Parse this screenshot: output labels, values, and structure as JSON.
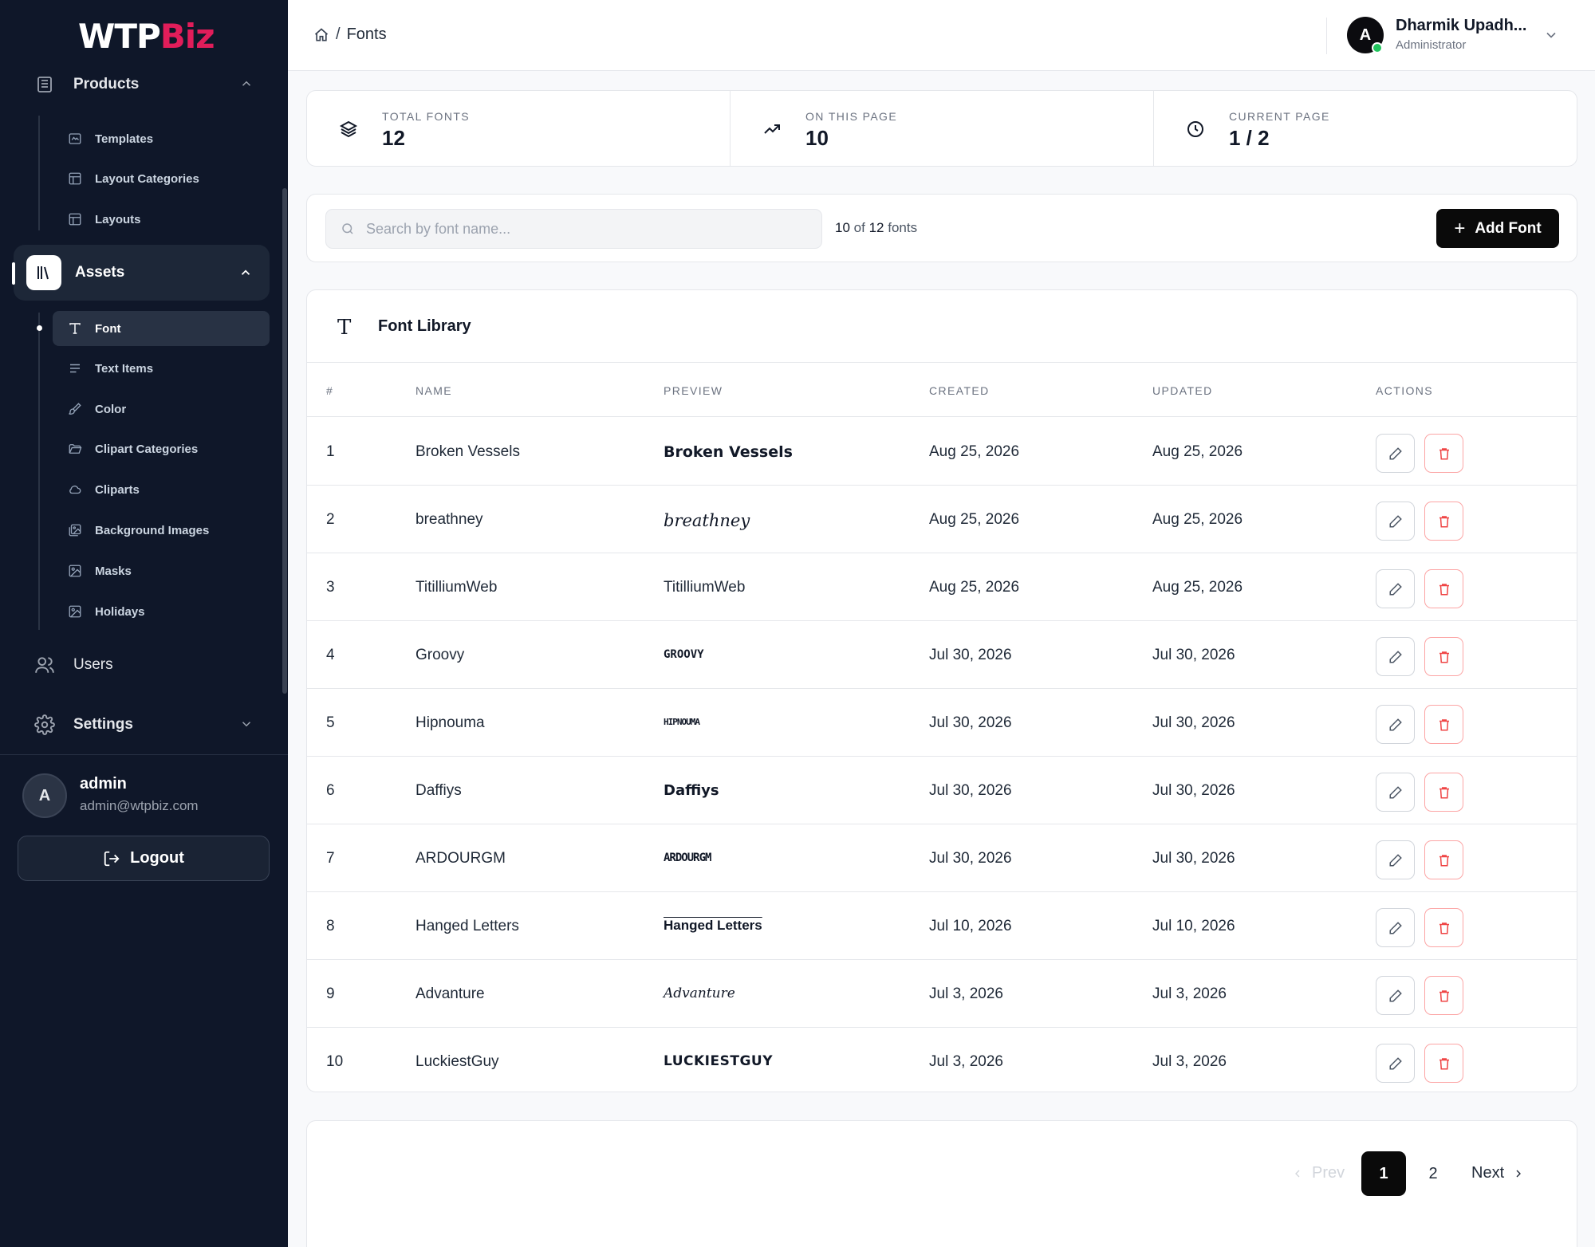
{
  "sidebar": {
    "logo_part1": "WTP",
    "logo_part2": "Biz",
    "products": {
      "label": "Products"
    },
    "products_items": [
      {
        "label": "Templates"
      },
      {
        "label": "Layout Categories"
      },
      {
        "label": "Layouts"
      }
    ],
    "assets": {
      "label": "Assets"
    },
    "assets_items": [
      {
        "label": "Font"
      },
      {
        "label": "Text Items"
      },
      {
        "label": "Color"
      },
      {
        "label": "Clipart Categories"
      },
      {
        "label": "Cliparts"
      },
      {
        "label": "Background Images"
      },
      {
        "label": "Masks"
      },
      {
        "label": "Holidays"
      }
    ],
    "users": {
      "label": "Users"
    },
    "settings": {
      "label": "Settings"
    },
    "account": {
      "initial": "A",
      "name": "admin",
      "email": "admin@wtpbiz.com"
    },
    "logout_label": "Logout"
  },
  "header": {
    "breadcrumb_sep": "/",
    "breadcrumb_current": "Fonts",
    "user_initial": "A",
    "user_name": "Dharmik Upadh...",
    "user_role": "Administrator"
  },
  "stats": [
    {
      "label": "TOTAL FONTS",
      "value": "12",
      "icon": "layers-icon"
    },
    {
      "label": "ON THIS PAGE",
      "value": "10",
      "icon": "trending-up-icon"
    },
    {
      "label": "CURRENT PAGE",
      "value": "1 / 2",
      "icon": "clock-icon"
    }
  ],
  "toolbar": {
    "search_placeholder": "Search by font name...",
    "count_shown": "10",
    "count_of": "of",
    "count_total": "12",
    "count_unit": "fonts",
    "add_label": "Add Font"
  },
  "table": {
    "title_icon": "T",
    "title": "Font Library",
    "headers": {
      "idx": "#",
      "name": "NAME",
      "preview": "PREVIEW",
      "created": "CREATED",
      "updated": "UPDATED",
      "actions": "ACTIONS"
    },
    "rows": [
      {
        "idx": "1",
        "name": "Broken Vessels",
        "preview": "Broken Vessels",
        "created": "Aug 25, 2026",
        "updated": "Aug 25, 2026"
      },
      {
        "idx": "2",
        "name": "breathney",
        "preview": "breathney",
        "created": "Aug 25, 2026",
        "updated": "Aug 25, 2026"
      },
      {
        "idx": "3",
        "name": "TitilliumWeb",
        "preview": "TitilliumWeb",
        "created": "Aug 25, 2026",
        "updated": "Aug 25, 2026"
      },
      {
        "idx": "4",
        "name": "Groovy",
        "preview": "GROOVY",
        "created": "Jul 30, 2026",
        "updated": "Jul 30, 2026"
      },
      {
        "idx": "5",
        "name": "Hipnouma",
        "preview": "HIPNOUMA",
        "created": "Jul 30, 2026",
        "updated": "Jul 30, 2026"
      },
      {
        "idx": "6",
        "name": "Daffiys",
        "preview": "Daffiys",
        "created": "Jul 30, 2026",
        "updated": "Jul 30, 2026"
      },
      {
        "idx": "7",
        "name": "ARDOURGM",
        "preview": "ARDOURGM",
        "created": "Jul 30, 2026",
        "updated": "Jul 30, 2026"
      },
      {
        "idx": "8",
        "name": "Hanged Letters",
        "preview": "Hanged Letters",
        "created": "Jul 10, 2026",
        "updated": "Jul 10, 2026"
      },
      {
        "idx": "9",
        "name": "Advanture",
        "preview": "Advanture",
        "created": "Jul 3, 2026",
        "updated": "Jul 3, 2026"
      },
      {
        "idx": "10",
        "name": "LuckiestGuy",
        "preview": "LUCKIESTGUY",
        "created": "Jul 3, 2026",
        "updated": "Jul 3, 2026"
      }
    ]
  },
  "pagination": {
    "prev_label": "Prev",
    "pages": [
      "1",
      "2"
    ],
    "next_label": "Next"
  }
}
